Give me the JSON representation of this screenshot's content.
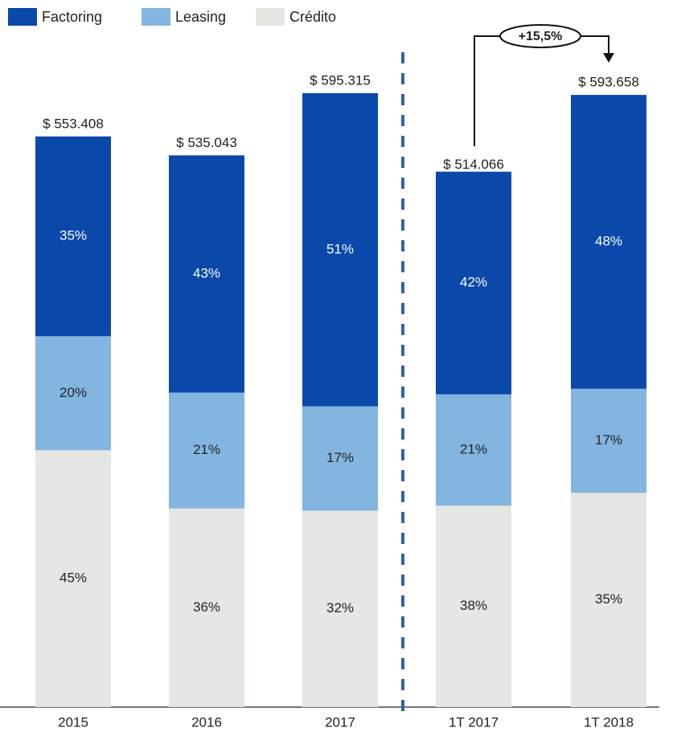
{
  "chart_data": {
    "type": "bar",
    "stacked": true,
    "categories": [
      "2015",
      "2016",
      "2017",
      "1T 2017",
      "1T 2018"
    ],
    "series": [
      {
        "name": "Crédito",
        "color": "#e6e6e2",
        "values": [
          45,
          36,
          32,
          38,
          35
        ],
        "value_labels": [
          "45%",
          "36%",
          "32%",
          "38%",
          "35%"
        ]
      },
      {
        "name": "Leasing",
        "color": "#83b5e1",
        "values": [
          20,
          21,
          17,
          21,
          17
        ],
        "value_labels": [
          "20%",
          "21%",
          "17%",
          "21%",
          "17%"
        ]
      },
      {
        "name": "Factoring",
        "color": "#0a48aa",
        "values": [
          35,
          43,
          51,
          42,
          48
        ],
        "value_labels": [
          "35%",
          "43%",
          "51%",
          "42%",
          "48%"
        ]
      }
    ],
    "totals": {
      "values": [
        553408,
        535043,
        595315,
        514066,
        593658
      ],
      "value_labels": [
        "$ 553.408",
        "$ 535.043",
        "$ 595.315",
        "$ 514.066",
        "$ 593.658"
      ]
    },
    "annotation": "+15,5%",
    "legend_order": [
      2,
      1,
      0
    ]
  }
}
